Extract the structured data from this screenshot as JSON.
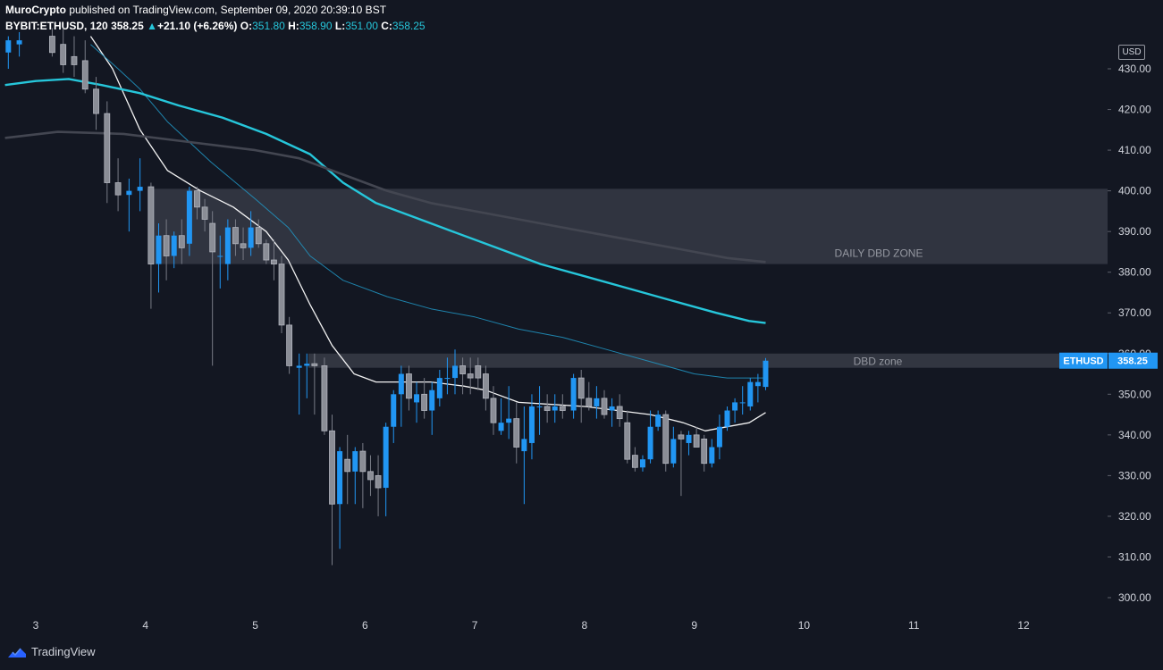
{
  "header": {
    "author": "MuroCrypto",
    "published_text": "published on TradingView.com, September 09, 2020 20:39:10 BST",
    "symbol": "BYBIT:ETHUSD",
    "interval": "120",
    "last": "358.25",
    "change_arrow": "▲",
    "change": "+21.10 (+6.26%)",
    "o_label": "O:",
    "o_value": "351.80",
    "h_label": "H:",
    "h_value": "358.90",
    "l_label": "L:",
    "l_value": "351.00",
    "c_label": "C:",
    "c_value": "358.25"
  },
  "price_axis": {
    "currency": "USD",
    "ticks": [
      "430.00",
      "420.00",
      "410.00",
      "400.00",
      "390.00",
      "380.00",
      "370.00",
      "360.00",
      "350.00",
      "340.00",
      "330.00",
      "320.00",
      "310.00",
      "300.00"
    ],
    "last_symbol": "ETHUSD",
    "last_price": "358.25"
  },
  "time_axis": {
    "ticks": [
      "3",
      "4",
      "5",
      "6",
      "7",
      "8",
      "9",
      "10",
      "11",
      "12"
    ]
  },
  "zones": {
    "daily": {
      "label": "DAILY DBD ZONE",
      "top": 400.5,
      "bottom": 382.0
    },
    "dbd": {
      "label": "DBD zone",
      "top": 360.0,
      "bottom": 356.5
    }
  },
  "footer": {
    "brand": "TradingView"
  },
  "colors": {
    "bull": "#2196f3",
    "bear": "#787b86",
    "zone": "#363a45",
    "ma_fast": "#ffffff",
    "ma_mid": "#2196c4",
    "ma_slow": "#26c6da",
    "ma_200": "#434651",
    "accent": "#2962ff"
  },
  "chart_data": {
    "type": "candlestick",
    "x_unit": "day (September 2020)",
    "ylim": [
      296,
      437
    ],
    "xlim": [
      2.72,
      12.41
    ],
    "candles": [
      {
        "t": 2.75,
        "o": 434.0,
        "h": 438.0,
        "l": 430.0,
        "c": 437.0
      },
      {
        "t": 2.85,
        "o": 436.0,
        "h": 439.0,
        "l": 433.0,
        "c": 437.0
      },
      {
        "t": 3.15,
        "o": 438.0,
        "h": 440.0,
        "l": 433.0,
        "c": 434.0
      },
      {
        "t": 3.25,
        "o": 436.0,
        "h": 440.0,
        "l": 429.0,
        "c": 431.0
      },
      {
        "t": 3.35,
        "o": 433.0,
        "h": 438.0,
        "l": 428.0,
        "c": 431.0
      },
      {
        "t": 3.45,
        "o": 432.0,
        "h": 437.0,
        "l": 424.0,
        "c": 425.0
      },
      {
        "t": 3.55,
        "o": 425.0,
        "h": 428.0,
        "l": 415.0,
        "c": 419.0
      },
      {
        "t": 3.65,
        "o": 419.0,
        "h": 422.0,
        "l": 397.0,
        "c": 402.0
      },
      {
        "t": 3.75,
        "o": 402.0,
        "h": 408.0,
        "l": 395.0,
        "c": 399.0
      },
      {
        "t": 3.85,
        "o": 399.0,
        "h": 403.0,
        "l": 390.0,
        "c": 400.0
      },
      {
        "t": 3.95,
        "o": 400.0,
        "h": 408.0,
        "l": 395.0,
        "c": 401.0
      },
      {
        "t": 4.05,
        "o": 401.0,
        "h": 402.0,
        "l": 371.0,
        "c": 382.0
      },
      {
        "t": 4.12,
        "o": 382.0,
        "h": 392.0,
        "l": 375.0,
        "c": 389.0
      },
      {
        "t": 4.19,
        "o": 389.0,
        "h": 393.0,
        "l": 378.0,
        "c": 384.0
      },
      {
        "t": 4.26,
        "o": 384.0,
        "h": 390.0,
        "l": 381.0,
        "c": 389.0
      },
      {
        "t": 4.33,
        "o": 389.0,
        "h": 393.0,
        "l": 382.0,
        "c": 386.0
      },
      {
        "t": 4.4,
        "o": 387.0,
        "h": 401.0,
        "l": 384.0,
        "c": 400.0
      },
      {
        "t": 4.47,
        "o": 400.0,
        "h": 401.0,
        "l": 393.0,
        "c": 396.0
      },
      {
        "t": 4.54,
        "o": 396.0,
        "h": 398.0,
        "l": 390.0,
        "c": 393.0
      },
      {
        "t": 4.61,
        "o": 392.0,
        "h": 395.0,
        "l": 357.0,
        "c": 385.0
      },
      {
        "t": 4.68,
        "o": 384.0,
        "h": 389.0,
        "l": 376.0,
        "c": 384.0
      },
      {
        "t": 4.75,
        "o": 382.0,
        "h": 393.0,
        "l": 378.0,
        "c": 391.0
      },
      {
        "t": 4.82,
        "o": 391.0,
        "h": 393.0,
        "l": 384.0,
        "c": 387.0
      },
      {
        "t": 4.89,
        "o": 387.0,
        "h": 391.0,
        "l": 383.0,
        "c": 386.0
      },
      {
        "t": 4.96,
        "o": 386.0,
        "h": 395.0,
        "l": 384.0,
        "c": 391.0
      },
      {
        "t": 5.03,
        "o": 391.0,
        "h": 393.0,
        "l": 386.0,
        "c": 387.0
      },
      {
        "t": 5.1,
        "o": 387.0,
        "h": 388.0,
        "l": 382.0,
        "c": 383.0
      },
      {
        "t": 5.17,
        "o": 383.0,
        "h": 388.0,
        "l": 378.0,
        "c": 382.0
      },
      {
        "t": 5.24,
        "o": 382.0,
        "h": 384.0,
        "l": 365.0,
        "c": 367.0
      },
      {
        "t": 5.31,
        "o": 367.0,
        "h": 369.0,
        "l": 355.0,
        "c": 357.0
      },
      {
        "t": 5.4,
        "o": 356.5,
        "h": 360.0,
        "l": 345.0,
        "c": 357.0
      },
      {
        "t": 5.47,
        "o": 357.0,
        "h": 360.0,
        "l": 349.0,
        "c": 357.5
      },
      {
        "t": 5.54,
        "o": 357.5,
        "h": 360.0,
        "l": 345.0,
        "c": 357.0
      },
      {
        "t": 5.63,
        "o": 357.0,
        "h": 359.0,
        "l": 340.0,
        "c": 341.0
      },
      {
        "t": 5.7,
        "o": 341.0,
        "h": 345.0,
        "l": 308.0,
        "c": 323.0
      },
      {
        "t": 5.77,
        "o": 323.0,
        "h": 337.0,
        "l": 312.0,
        "c": 336.0
      },
      {
        "t": 5.84,
        "o": 334.0,
        "h": 340.0,
        "l": 323.0,
        "c": 331.0
      },
      {
        "t": 5.91,
        "o": 331.0,
        "h": 337.0,
        "l": 323.0,
        "c": 336.0
      },
      {
        "t": 5.98,
        "o": 336.0,
        "h": 338.0,
        "l": 322.0,
        "c": 331.0
      },
      {
        "t": 6.05,
        "o": 331.0,
        "h": 335.0,
        "l": 325.0,
        "c": 329.0
      },
      {
        "t": 6.12,
        "o": 330.0,
        "h": 335.0,
        "l": 320.0,
        "c": 327.0
      },
      {
        "t": 6.19,
        "o": 327.0,
        "h": 343.0,
        "l": 320.0,
        "c": 342.0
      },
      {
        "t": 6.26,
        "o": 342.0,
        "h": 351.0,
        "l": 338.0,
        "c": 350.0
      },
      {
        "t": 6.33,
        "o": 350.0,
        "h": 357.0,
        "l": 342.0,
        "c": 355.0
      },
      {
        "t": 6.4,
        "o": 355.0,
        "h": 357.0,
        "l": 346.0,
        "c": 349.0
      },
      {
        "t": 6.47,
        "o": 348.0,
        "h": 353.0,
        "l": 343.0,
        "c": 350.0
      },
      {
        "t": 6.54,
        "o": 350.0,
        "h": 354.0,
        "l": 344.0,
        "c": 346.0
      },
      {
        "t": 6.61,
        "o": 346.0,
        "h": 353.0,
        "l": 340.0,
        "c": 351.0
      },
      {
        "t": 6.68,
        "o": 349.0,
        "h": 356.0,
        "l": 347.0,
        "c": 354.0
      },
      {
        "t": 6.75,
        "o": 354.0,
        "h": 359.0,
        "l": 350.0,
        "c": 354.0
      },
      {
        "t": 6.82,
        "o": 354.0,
        "h": 361.0,
        "l": 350.0,
        "c": 357.0
      },
      {
        "t": 6.89,
        "o": 357.0,
        "h": 359.0,
        "l": 350.0,
        "c": 355.0
      },
      {
        "t": 6.96,
        "o": 355.0,
        "h": 359.0,
        "l": 350.0,
        "c": 354.0
      },
      {
        "t": 7.03,
        "o": 357.0,
        "h": 359.0,
        "l": 351.0,
        "c": 354.0
      },
      {
        "t": 7.1,
        "o": 355.0,
        "h": 357.0,
        "l": 346.0,
        "c": 349.0
      },
      {
        "t": 7.17,
        "o": 349.0,
        "h": 352.0,
        "l": 340.0,
        "c": 343.0
      },
      {
        "t": 7.24,
        "o": 341.0,
        "h": 349.0,
        "l": 340.0,
        "c": 343.0
      },
      {
        "t": 7.31,
        "o": 343.0,
        "h": 352.0,
        "l": 339.0,
        "c": 344.0
      },
      {
        "t": 7.38,
        "o": 344.0,
        "h": 348.0,
        "l": 333.0,
        "c": 337.0
      },
      {
        "t": 7.45,
        "o": 336.0,
        "h": 347.0,
        "l": 323.0,
        "c": 339.0
      },
      {
        "t": 7.52,
        "o": 338.0,
        "h": 350.0,
        "l": 334.0,
        "c": 347.0
      },
      {
        "t": 7.59,
        "o": 347.0,
        "h": 352.0,
        "l": 340.0,
        "c": 347.0
      },
      {
        "t": 7.66,
        "o": 347.0,
        "h": 350.0,
        "l": 343.0,
        "c": 346.0
      },
      {
        "t": 7.73,
        "o": 346.0,
        "h": 350.0,
        "l": 343.0,
        "c": 347.0
      },
      {
        "t": 7.8,
        "o": 347.0,
        "h": 350.0,
        "l": 344.0,
        "c": 346.0
      },
      {
        "t": 7.9,
        "o": 346.0,
        "h": 355.0,
        "l": 344.0,
        "c": 354.0
      },
      {
        "t": 7.97,
        "o": 354.0,
        "h": 356.0,
        "l": 343.0,
        "c": 349.0
      },
      {
        "t": 8.04,
        "o": 349.0,
        "h": 353.0,
        "l": 346.0,
        "c": 347.0
      },
      {
        "t": 8.11,
        "o": 347.0,
        "h": 352.0,
        "l": 344.0,
        "c": 349.0
      },
      {
        "t": 8.18,
        "o": 349.0,
        "h": 351.0,
        "l": 344.0,
        "c": 345.0
      },
      {
        "t": 8.25,
        "o": 346.0,
        "h": 349.0,
        "l": 342.0,
        "c": 347.0
      },
      {
        "t": 8.32,
        "o": 347.0,
        "h": 350.0,
        "l": 342.0,
        "c": 344.0
      },
      {
        "t": 8.39,
        "o": 343.0,
        "h": 346.0,
        "l": 333.0,
        "c": 334.0
      },
      {
        "t": 8.46,
        "o": 335.0,
        "h": 337.0,
        "l": 331.0,
        "c": 332.0
      },
      {
        "t": 8.53,
        "o": 332.0,
        "h": 335.0,
        "l": 331.0,
        "c": 334.0
      },
      {
        "t": 8.6,
        "o": 334.0,
        "h": 346.0,
        "l": 333.0,
        "c": 342.0
      },
      {
        "t": 8.67,
        "o": 342.0,
        "h": 346.0,
        "l": 341.0,
        "c": 345.0
      },
      {
        "t": 8.74,
        "o": 345.0,
        "h": 346.0,
        "l": 331.0,
        "c": 333.0
      },
      {
        "t": 8.81,
        "o": 333.0,
        "h": 342.0,
        "l": 332.0,
        "c": 339.0
      },
      {
        "t": 8.88,
        "o": 340.0,
        "h": 341.0,
        "l": 325.0,
        "c": 339.0
      },
      {
        "t": 8.95,
        "o": 338.0,
        "h": 341.0,
        "l": 335.0,
        "c": 340.0
      },
      {
        "t": 9.02,
        "o": 340.0,
        "h": 342.0,
        "l": 337.0,
        "c": 337.0
      },
      {
        "t": 9.09,
        "o": 339.0,
        "h": 340.0,
        "l": 331.0,
        "c": 333.0
      },
      {
        "t": 9.16,
        "o": 333.0,
        "h": 339.0,
        "l": 332.0,
        "c": 337.0
      },
      {
        "t": 9.23,
        "o": 337.0,
        "h": 345.0,
        "l": 334.0,
        "c": 342.0
      },
      {
        "t": 9.3,
        "o": 342.0,
        "h": 347.0,
        "l": 341.0,
        "c": 346.0
      },
      {
        "t": 9.37,
        "o": 346.0,
        "h": 349.0,
        "l": 343.0,
        "c": 348.0
      },
      {
        "t": 9.44,
        "o": 348.0,
        "h": 352.0,
        "l": 345.0,
        "c": 348.0
      },
      {
        "t": 9.51,
        "o": 347.0,
        "h": 354.0,
        "l": 346.0,
        "c": 353.0
      },
      {
        "t": 9.58,
        "o": 352.0,
        "h": 355.0,
        "l": 348.0,
        "c": 353.0
      },
      {
        "t": 9.65,
        "o": 351.8,
        "h": 358.9,
        "l": 351.0,
        "c": 358.25
      }
    ],
    "moving_averages": [
      {
        "kind": "fast",
        "points": [
          [
            3.5,
            438
          ],
          [
            3.7,
            430
          ],
          [
            3.95,
            415
          ],
          [
            4.2,
            405
          ],
          [
            4.5,
            400
          ],
          [
            4.8,
            396
          ],
          [
            5.1,
            390
          ],
          [
            5.3,
            383
          ],
          [
            5.5,
            372
          ],
          [
            5.7,
            362
          ],
          [
            5.9,
            355
          ],
          [
            6.1,
            353
          ],
          [
            6.3,
            353
          ],
          [
            6.6,
            353
          ],
          [
            6.9,
            352
          ],
          [
            7.1,
            351
          ],
          [
            7.4,
            348
          ],
          [
            7.7,
            347.5
          ],
          [
            8.0,
            347
          ],
          [
            8.3,
            346
          ],
          [
            8.6,
            345
          ],
          [
            8.9,
            343
          ],
          [
            9.1,
            341
          ],
          [
            9.3,
            342
          ],
          [
            9.5,
            343
          ],
          [
            9.65,
            345.5
          ]
        ]
      },
      {
        "kind": "mid",
        "points": [
          [
            3.5,
            436
          ],
          [
            3.75,
            430
          ],
          [
            3.95,
            425
          ],
          [
            4.2,
            417
          ],
          [
            4.6,
            407
          ],
          [
            5.0,
            398
          ],
          [
            5.3,
            391
          ],
          [
            5.5,
            384
          ],
          [
            5.8,
            378
          ],
          [
            6.2,
            374
          ],
          [
            6.6,
            371
          ],
          [
            7.0,
            369
          ],
          [
            7.4,
            366
          ],
          [
            7.8,
            364
          ],
          [
            8.2,
            361
          ],
          [
            8.6,
            358
          ],
          [
            9.0,
            355
          ],
          [
            9.3,
            354
          ],
          [
            9.65,
            354
          ]
        ]
      },
      {
        "kind": "slow",
        "points": [
          [
            2.72,
            426
          ],
          [
            3.0,
            427
          ],
          [
            3.3,
            427.5
          ],
          [
            3.6,
            426
          ],
          [
            3.95,
            424
          ],
          [
            4.3,
            421
          ],
          [
            4.7,
            418
          ],
          [
            5.1,
            414
          ],
          [
            5.5,
            409
          ],
          [
            5.8,
            402
          ],
          [
            6.1,
            397
          ],
          [
            6.4,
            394
          ],
          [
            6.8,
            390
          ],
          [
            7.2,
            386
          ],
          [
            7.6,
            382
          ],
          [
            8.0,
            379
          ],
          [
            8.4,
            376
          ],
          [
            8.8,
            373
          ],
          [
            9.2,
            370
          ],
          [
            9.5,
            368
          ],
          [
            9.65,
            367.5
          ]
        ]
      },
      {
        "kind": "ma200",
        "points": [
          [
            2.72,
            413
          ],
          [
            3.2,
            414.5
          ],
          [
            3.8,
            414
          ],
          [
            4.4,
            412
          ],
          [
            5.0,
            410
          ],
          [
            5.4,
            408
          ],
          [
            5.8,
            404
          ],
          [
            6.2,
            400
          ],
          [
            6.6,
            397
          ],
          [
            7.0,
            395
          ],
          [
            7.4,
            393
          ],
          [
            7.8,
            391
          ],
          [
            8.2,
            389
          ],
          [
            8.6,
            387
          ],
          [
            9.0,
            385
          ],
          [
            9.3,
            383.5
          ],
          [
            9.65,
            382.5
          ]
        ]
      }
    ]
  }
}
